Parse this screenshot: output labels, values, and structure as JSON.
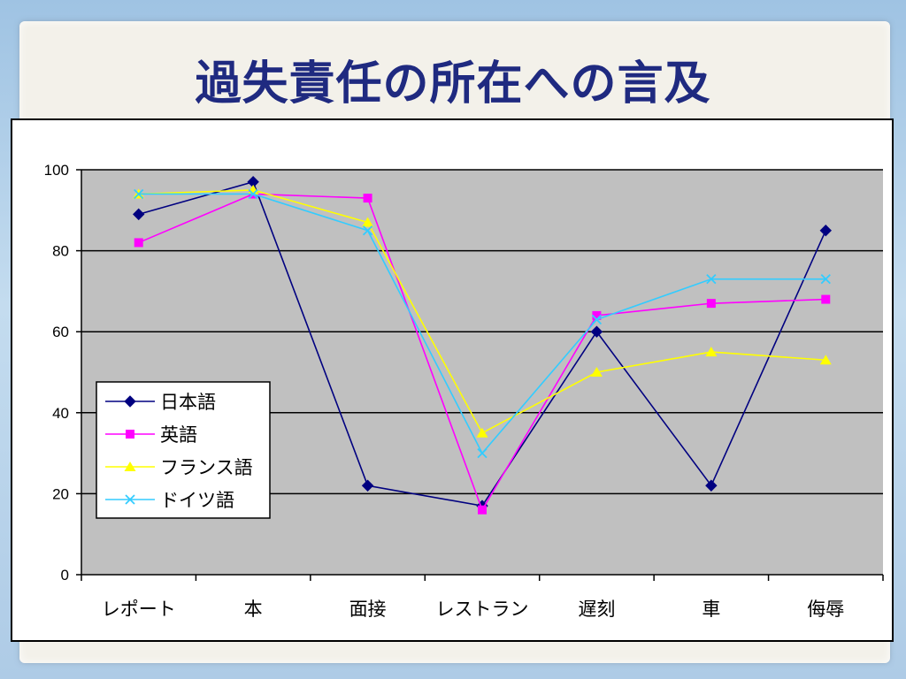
{
  "title": "過失責任の所在への言及",
  "chart_data": {
    "type": "line",
    "categories": [
      "レポート",
      "本",
      "面接",
      "レストラン",
      "遅刻",
      "車",
      "侮辱"
    ],
    "ylim": [
      0,
      100
    ],
    "yticks": [
      0,
      20,
      40,
      60,
      80,
      100
    ],
    "grid": true,
    "legend_position": "left",
    "series": [
      {
        "name": "日本語",
        "color": "#000080",
        "marker": "diamond",
        "values": [
          89,
          97,
          22,
          17,
          60,
          22,
          85
        ]
      },
      {
        "name": "英語",
        "color": "#ff00ff",
        "marker": "square",
        "values": [
          82,
          94,
          93,
          16,
          64,
          67,
          68
        ]
      },
      {
        "name": "フランス語",
        "color": "#ffff00",
        "marker": "triangle",
        "values": [
          94,
          95,
          87,
          35,
          50,
          55,
          53
        ]
      },
      {
        "name": "ドイツ語",
        "color": "#33ccff",
        "marker": "x",
        "values": [
          94,
          94,
          85,
          30,
          63,
          73,
          73
        ]
      }
    ]
  }
}
